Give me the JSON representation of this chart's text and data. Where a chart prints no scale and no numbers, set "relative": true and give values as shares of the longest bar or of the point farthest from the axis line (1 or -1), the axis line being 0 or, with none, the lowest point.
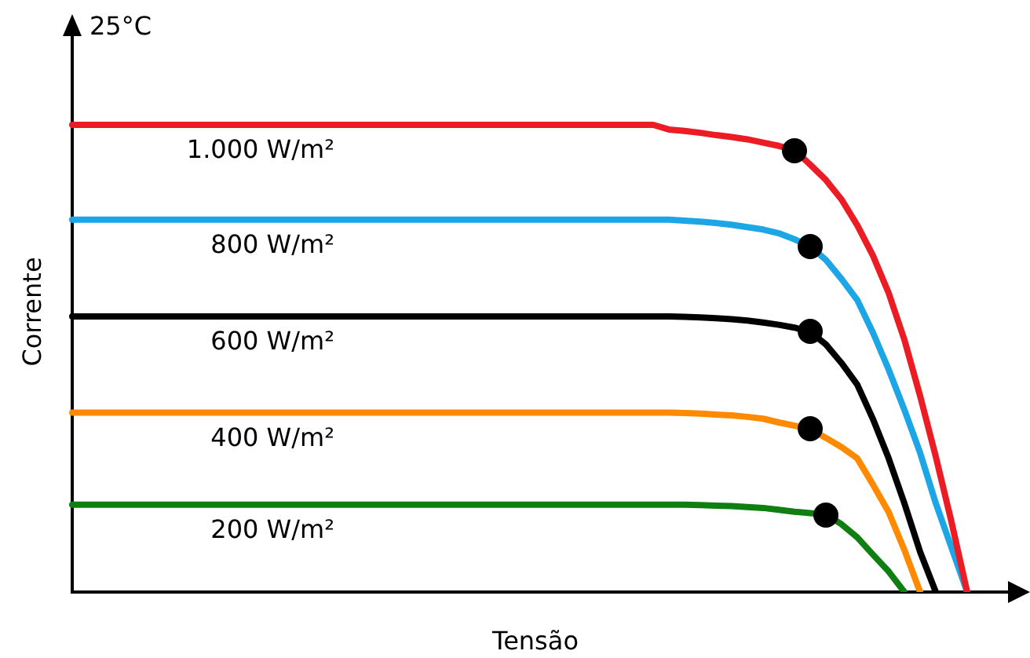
{
  "chart_data": {
    "type": "line",
    "xlabel": "Tensão",
    "ylabel": "Corrente",
    "annotations": [
      "25°C"
    ],
    "relative": true,
    "legend": false,
    "grid": false,
    "marker": "none",
    "categories": [
      null,
      null,
      null,
      null,
      null,
      null,
      null,
      null,
      null,
      null,
      null,
      null,
      null,
      null,
      null,
      null,
      null,
      null,
      null,
      null,
      null,
      null,
      null,
      null,
      null,
      null,
      null,
      null,
      null,
      null,
      null,
      null,
      null,
      null,
      null,
      null,
      null,
      null,
      null,
      null,
      null,
      null,
      null,
      null,
      null,
      null,
      null,
      null,
      null,
      null,
      null,
      null,
      null,
      null,
      null,
      null,
      null,
      null,
      null,
      null
    ],
    "series": [
      {
        "name": "1.000 W/m²",
        "color": "#ec1c24",
        "values": [
          1,
          1,
          1,
          1,
          1,
          1,
          1,
          1,
          1,
          1,
          1,
          1,
          1,
          1,
          1,
          1,
          1,
          1,
          1,
          1,
          1,
          1,
          1,
          1,
          1,
          1,
          1,
          1,
          1,
          1,
          1,
          1,
          1,
          1,
          1,
          1,
          1,
          1,
          0.99,
          0.987,
          0.983,
          0.978,
          0.974,
          0.969,
          0.962,
          0.955,
          0.946,
          0.915,
          0.882,
          0.84,
          0.785,
          0.72,
          0.64,
          0.54,
          0.42,
          0.29,
          0.15,
          0,
          null,
          null
        ]
      },
      {
        "name": "800 W/m²",
        "color": "#1ca6e6",
        "values": [
          0.797,
          0.797,
          0.797,
          0.797,
          0.797,
          0.797,
          0.797,
          0.797,
          0.797,
          0.797,
          0.797,
          0.797,
          0.797,
          0.797,
          0.797,
          0.797,
          0.797,
          0.797,
          0.797,
          0.797,
          0.797,
          0.797,
          0.797,
          0.797,
          0.797,
          0.797,
          0.797,
          0.797,
          0.797,
          0.797,
          0.797,
          0.797,
          0.797,
          0.797,
          0.797,
          0.797,
          0.797,
          0.797,
          0.797,
          0.795,
          0.793,
          0.79,
          0.786,
          0.781,
          0.776,
          0.768,
          0.755,
          0.74,
          0.711,
          0.67,
          0.625,
          0.555,
          0.476,
          0.39,
          0.298,
          0.19,
          0.095,
          0,
          null,
          null
        ]
      },
      {
        "name": "600 W/m²",
        "color": "#000000",
        "values": [
          0.59,
          0.59,
          0.59,
          0.59,
          0.59,
          0.59,
          0.59,
          0.59,
          0.59,
          0.59,
          0.59,
          0.59,
          0.59,
          0.59,
          0.59,
          0.59,
          0.59,
          0.59,
          0.59,
          0.59,
          0.59,
          0.59,
          0.59,
          0.59,
          0.59,
          0.59,
          0.59,
          0.59,
          0.59,
          0.59,
          0.59,
          0.59,
          0.59,
          0.59,
          0.59,
          0.59,
          0.59,
          0.59,
          0.59,
          0.589,
          0.588,
          0.586,
          0.584,
          0.581,
          0.577,
          0.572,
          0.566,
          0.557,
          0.53,
          0.49,
          0.444,
          0.37,
          0.286,
          0.19,
          0.086,
          0,
          null,
          null,
          null,
          null
        ]
      },
      {
        "name": "400 W/m²",
        "color": "#ff8a00",
        "values": [
          0.384,
          0.384,
          0.384,
          0.384,
          0.384,
          0.384,
          0.384,
          0.384,
          0.384,
          0.384,
          0.384,
          0.384,
          0.384,
          0.384,
          0.384,
          0.384,
          0.384,
          0.384,
          0.384,
          0.384,
          0.384,
          0.384,
          0.384,
          0.384,
          0.384,
          0.384,
          0.384,
          0.384,
          0.384,
          0.384,
          0.384,
          0.384,
          0.384,
          0.384,
          0.384,
          0.384,
          0.384,
          0.384,
          0.384,
          0.383,
          0.382,
          0.38,
          0.378,
          0.375,
          0.371,
          0.363,
          0.356,
          0.349,
          0.33,
          0.31,
          0.286,
          0.23,
          0.171,
          0.09,
          0,
          null,
          null,
          null,
          null,
          null
        ]
      },
      {
        "name": "200 W/m²",
        "color": "#0f7f12",
        "values": [
          0.187,
          0.187,
          0.187,
          0.187,
          0.187,
          0.187,
          0.187,
          0.187,
          0.187,
          0.187,
          0.187,
          0.187,
          0.187,
          0.187,
          0.187,
          0.187,
          0.187,
          0.187,
          0.187,
          0.187,
          0.187,
          0.187,
          0.187,
          0.187,
          0.187,
          0.187,
          0.187,
          0.187,
          0.187,
          0.187,
          0.187,
          0.187,
          0.187,
          0.187,
          0.187,
          0.187,
          0.187,
          0.187,
          0.187,
          0.187,
          0.186,
          0.185,
          0.184,
          0.182,
          0.18,
          0.176,
          0.172,
          0.169,
          0.166,
          0.145,
          0.117,
          0.08,
          0.044,
          0,
          null,
          null,
          null,
          null,
          null,
          null
        ]
      }
    ]
  }
}
